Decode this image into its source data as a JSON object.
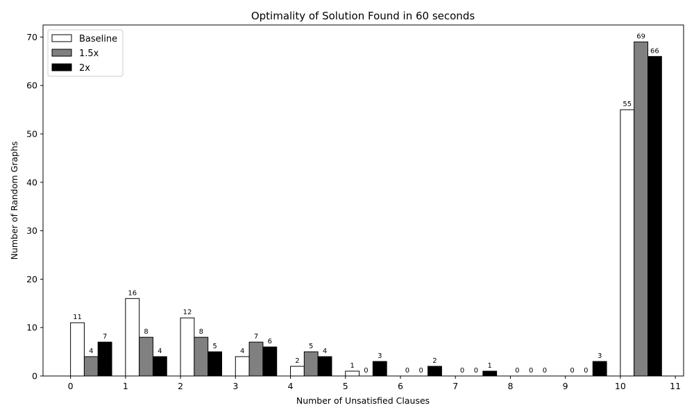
{
  "chart_data": {
    "type": "bar",
    "title": "Optimality of Solution Found in 60 seconds",
    "xlabel": "Number of Unsatisfied Clauses",
    "ylabel": "Number of Random Graphs",
    "categories": [
      "0",
      "1",
      "2",
      "3",
      "4",
      "5",
      "6",
      "7",
      "8",
      "9",
      "10",
      "11"
    ],
    "x_tick_labels": [
      "0",
      "1",
      "2",
      "3",
      "4",
      "5",
      "6",
      "7",
      "8",
      "9",
      "10",
      "11"
    ],
    "y_ticks": [
      0,
      10,
      20,
      30,
      40,
      50,
      60,
      70
    ],
    "xlim": [
      -0.5,
      11.15
    ],
    "ylim": [
      0,
      72.5
    ],
    "grid": false,
    "legend_position": "top-left",
    "series": [
      {
        "name": "Baseline",
        "color": "#ffffff",
        "values": [
          11,
          16,
          12,
          4,
          2,
          1,
          0,
          0,
          0,
          0,
          55,
          null
        ]
      },
      {
        "name": "1.5x",
        "color": "#808080",
        "values": [
          4,
          8,
          8,
          7,
          5,
          0,
          0,
          0,
          0,
          0,
          69,
          null
        ]
      },
      {
        "name": "2x",
        "color": "#000000",
        "values": [
          7,
          4,
          5,
          6,
          4,
          3,
          2,
          1,
          0,
          3,
          66,
          null
        ]
      }
    ]
  }
}
